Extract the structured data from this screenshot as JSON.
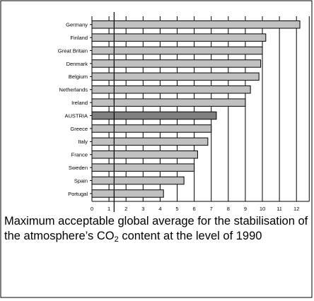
{
  "chart_data": {
    "type": "bar",
    "orientation": "horizontal",
    "categories": [
      "Germany",
      "Finland",
      "Great Britain",
      "Denmark",
      "Belgium",
      "Netherlands",
      "Ireland",
      "AUSTRIA",
      "Greece",
      "Italy",
      "France",
      "Sweden",
      "Spain",
      "Portugal"
    ],
    "values": [
      12.2,
      10.2,
      10.0,
      9.9,
      9.8,
      9.3,
      9.0,
      7.3,
      7.0,
      6.8,
      6.2,
      6.0,
      5.4,
      4.2
    ],
    "highlight_category": "AUSTRIA",
    "xticks": [
      "0",
      "1",
      "2",
      "3",
      "4",
      "5",
      "6",
      "7",
      "8",
      "9",
      "10",
      "11",
      "12"
    ],
    "xlim": [
      0,
      12.5
    ],
    "grid": true,
    "reference_line": {
      "x": 1.3,
      "label_parts": [
        "Maximum acceptable global average for the stabilisation of the atmosphere’s CO",
        "2",
        " content at the level of 1990"
      ]
    },
    "colors": {
      "bar": "#c0c0c0",
      "highlight_bar": "#808080",
      "lines": "#000000"
    }
  }
}
